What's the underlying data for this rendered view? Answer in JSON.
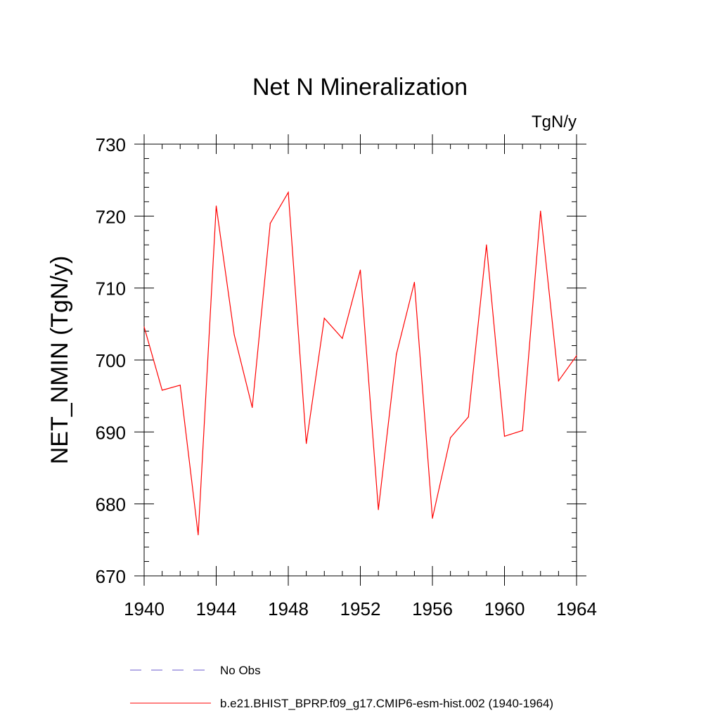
{
  "chart_data": {
    "type": "line",
    "title": "Net N Mineralization",
    "units_label": "TgN/y",
    "xlabel": "",
    "ylabel": "NET_NMIN  (TgN/y)",
    "xlim": [
      1940,
      1964
    ],
    "ylim": [
      670,
      730
    ],
    "x_ticks": [
      1940,
      1944,
      1948,
      1952,
      1956,
      1960,
      1964
    ],
    "y_ticks": [
      670,
      680,
      690,
      700,
      710,
      720,
      730
    ],
    "x_minor_step": 1,
    "y_minor_step": 2,
    "x": [
      1940,
      1941,
      1942,
      1943,
      1944,
      1945,
      1946,
      1947,
      1948,
      1949,
      1950,
      1951,
      1952,
      1953,
      1954,
      1955,
      1956,
      1957,
      1958,
      1959,
      1960,
      1961,
      1962,
      1963,
      1964
    ],
    "series": [
      {
        "name": "b.e21.BHIST_BPRP.f09_g17.CMIP6-esm-hist.002 (1940-1964)",
        "color": "#ff0000",
        "style": "solid",
        "values": [
          704.6,
          695.8,
          696.5,
          675.7,
          721.4,
          703.5,
          693.4,
          719.0,
          723.3,
          688.4,
          705.8,
          703.0,
          712.5,
          679.2,
          700.8,
          710.8,
          678.0,
          689.2,
          692.1,
          716.0,
          689.4,
          690.2,
          720.7,
          697.1,
          700.6
        ]
      }
    ],
    "legend": {
      "placement": "bottom",
      "entries": [
        {
          "label": "No Obs",
          "color": "#6a5acd",
          "style": "dashed"
        },
        {
          "label": "b.e21.BHIST_BPRP.f09_g17.CMIP6-esm-hist.002 (1940-1964)",
          "color": "#ff0000",
          "style": "solid"
        }
      ]
    }
  }
}
